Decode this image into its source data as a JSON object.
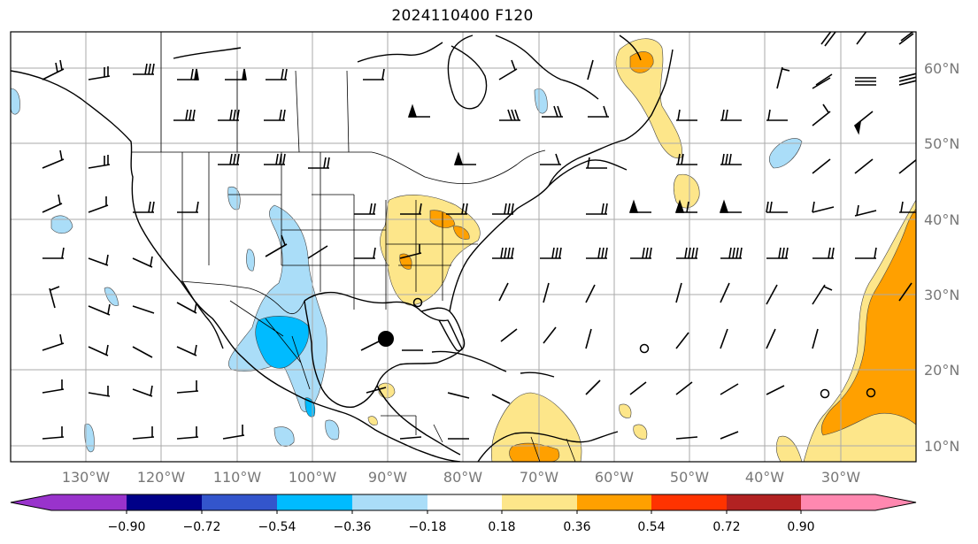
{
  "title": "2024110400 F120",
  "lat_ticks": [
    {
      "label": "60°N",
      "lat": 60
    },
    {
      "label": "50°N",
      "lat": 50
    },
    {
      "label": "40°N",
      "lat": 40
    },
    {
      "label": "30°N",
      "lat": 30
    },
    {
      "label": "20°N",
      "lat": 20
    },
    {
      "label": "10°N",
      "lat": 10
    }
  ],
  "lon_ticks": [
    {
      "label": "130°W",
      "lon": -130
    },
    {
      "label": "120°W",
      "lon": -120
    },
    {
      "label": "110°W",
      "lon": -110
    },
    {
      "label": "100°W",
      "lon": -100
    },
    {
      "label": "90°W",
      "lon": -90
    },
    {
      "label": "80°W",
      "lon": -80
    },
    {
      "label": "70°W",
      "lon": -70
    },
    {
      "label": "60°W",
      "lon": -60
    },
    {
      "label": "50°W",
      "lon": -50
    },
    {
      "label": "40°W",
      "lon": -40
    },
    {
      "label": "30°W",
      "lon": -30
    }
  ],
  "colorbar": {
    "labels": [
      "−0.90",
      "−0.72",
      "−0.54",
      "−0.36",
      "−0.18",
      "0.18",
      "0.36",
      "0.54",
      "0.72",
      "0.90"
    ],
    "colors": [
      "#9933cc",
      "#000088",
      "#3355cc",
      "#00bbff",
      "#aaddf8",
      "#ffffff",
      "#fde68a",
      "#ffa000",
      "#ff3300",
      "#b22222",
      "#ff88b0"
    ]
  },
  "colors": {
    "light_blue": "#aaddf8",
    "blue": "#00bbff",
    "light_yellow": "#fde68a",
    "orange": "#ffa000",
    "grid": "#aaaaaa"
  },
  "markers": [
    "large-dot-gulf",
    "open-circles-atlantic"
  ]
}
